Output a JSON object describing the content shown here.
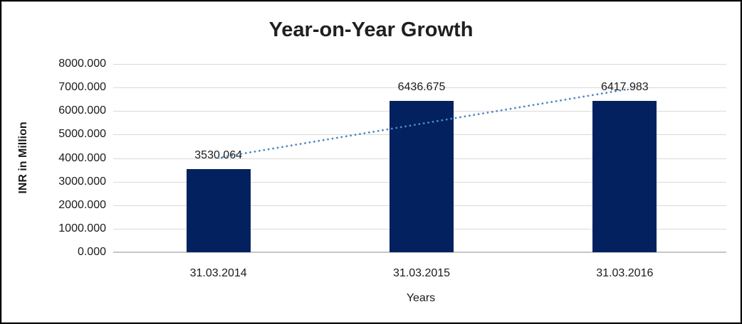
{
  "chart_data": {
    "type": "bar",
    "title": "Year-on-Year Growth",
    "xlabel": "Years",
    "ylabel": "INR in Million",
    "categories": [
      "31.03.2014",
      "31.03.2015",
      "31.03.2016"
    ],
    "values": [
      3530.064,
      6436.675,
      6417.983
    ],
    "data_labels": [
      "3530.064",
      "6436.675",
      "6417.983"
    ],
    "y_ticks": [
      "8000.000",
      "7000.000",
      "6000.000",
      "5000.000",
      "4000.000",
      "3000.000",
      "2000.000",
      "1000.000",
      "0.000"
    ],
    "ylim": [
      0,
      8000
    ],
    "grid": true,
    "legend": "none",
    "colors": {
      "bar": "#03215f",
      "trendline": "#4f88c7",
      "gridline": "#d9d9d9",
      "axis_line": "#c6c6c6",
      "title_text": "#1f1f1f",
      "label_text": "#1a1a1a"
    },
    "trendline": {
      "kind": "linear-regression",
      "style": "dotted"
    }
  }
}
